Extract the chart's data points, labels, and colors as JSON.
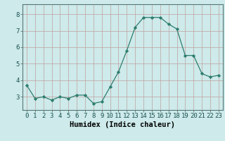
{
  "x": [
    0,
    1,
    2,
    3,
    4,
    5,
    6,
    7,
    8,
    9,
    10,
    11,
    12,
    13,
    14,
    15,
    16,
    17,
    18,
    19,
    20,
    21,
    22,
    23
  ],
  "y": [
    3.7,
    2.9,
    3.0,
    2.8,
    3.0,
    2.9,
    3.1,
    3.1,
    2.6,
    2.7,
    3.6,
    4.5,
    5.8,
    7.2,
    7.8,
    7.8,
    7.8,
    7.4,
    7.1,
    5.5,
    5.5,
    4.4,
    4.2,
    4.3
  ],
  "xlabel": "Humidex (Indice chaleur)",
  "xlim": [
    -0.5,
    23.5
  ],
  "ylim": [
    2.2,
    8.6
  ],
  "yticks": [
    3,
    4,
    5,
    6,
    7,
    8
  ],
  "xtick_labels": [
    "0",
    "1",
    "2",
    "3",
    "4",
    "5",
    "6",
    "7",
    "8",
    "9",
    "10",
    "11",
    "12",
    "13",
    "14",
    "15",
    "16",
    "17",
    "18",
    "19",
    "20",
    "21",
    "22",
    "23"
  ],
  "line_color": "#2e7d6e",
  "marker": "D",
  "marker_size": 2.2,
  "bg_color": "#ceeaea",
  "grid_color": "#c0a0a0",
  "xlabel_fontsize": 7.5,
  "tick_fontsize": 6.5,
  "linewidth": 0.9
}
